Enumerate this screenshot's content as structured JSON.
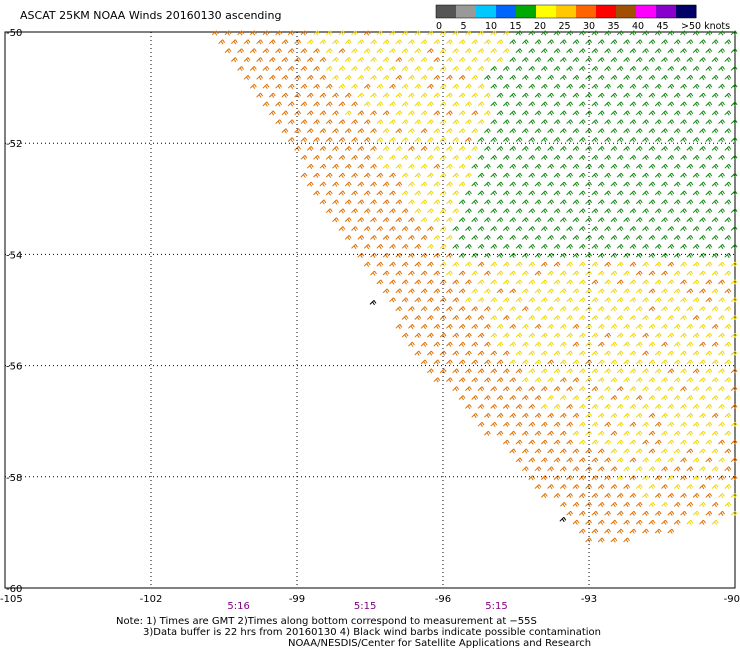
{
  "title": "ASCAT 25KM NOAA Winds 20160130 ascending",
  "notes": {
    "line1": "Note: 1) Times are GMT 2)Times along bottom correspond to measurement at −55S",
    "line2": "3)Data buffer is 22 hrs from 20160130 4) Black wind barbs indicate possible contamination",
    "line3": "NOAA/NESDIS/Center for Satellite Applications and Research"
  },
  "colorbar": {
    "labels": [
      "0",
      "5",
      "10",
      "15",
      "20",
      "25",
      "30",
      "35",
      "40",
      "45",
      ">50 knots"
    ],
    "colors": [
      "#555555",
      "#999999",
      "#00c8ff",
      "#0064ff",
      "#00aa00",
      "#ffff00",
      "#ffc800",
      "#ff6400",
      "#ff0000",
      "#a05000",
      "#ff00ff",
      "#8800cc",
      "#000066"
    ]
  },
  "chart_data": {
    "type": "wind-barb map",
    "x_ticks": [
      "-105",
      "-102",
      "-99",
      "-96",
      "-93",
      "-90"
    ],
    "y_ticks": [
      "-50",
      "-52",
      "-54",
      "-56",
      "-58",
      "-60"
    ],
    "xlim": [
      -105,
      -90
    ],
    "ylim": [
      -60,
      -50
    ],
    "times": [
      {
        "label": "5:16",
        "lon": -100.2
      },
      {
        "label": "5:15",
        "lon": -97.6
      },
      {
        "label": "5:15",
        "lon": -94.9
      }
    ],
    "swath_west_edge": [
      [
        -100.8,
        -50
      ],
      [
        -96.5,
        -56
      ],
      [
        -93.0,
        -59.3
      ]
    ],
    "swath_south_edge": [
      [
        -93.0,
        -59.3
      ],
      [
        -90,
        -58.8
      ]
    ],
    "wind_regions": [
      {
        "name": "orange",
        "speed_knots": "25-30",
        "color": "#e07000"
      },
      {
        "name": "yellow",
        "speed_knots": "15-25",
        "color": "#f0d800"
      },
      {
        "name": "green",
        "speed_knots": "15-20",
        "color": "#138a13"
      }
    ],
    "contaminated_barbs": [
      [
        -97.5,
        -54.9
      ],
      [
        -93.6,
        -58.8
      ]
    ],
    "grid": true
  }
}
